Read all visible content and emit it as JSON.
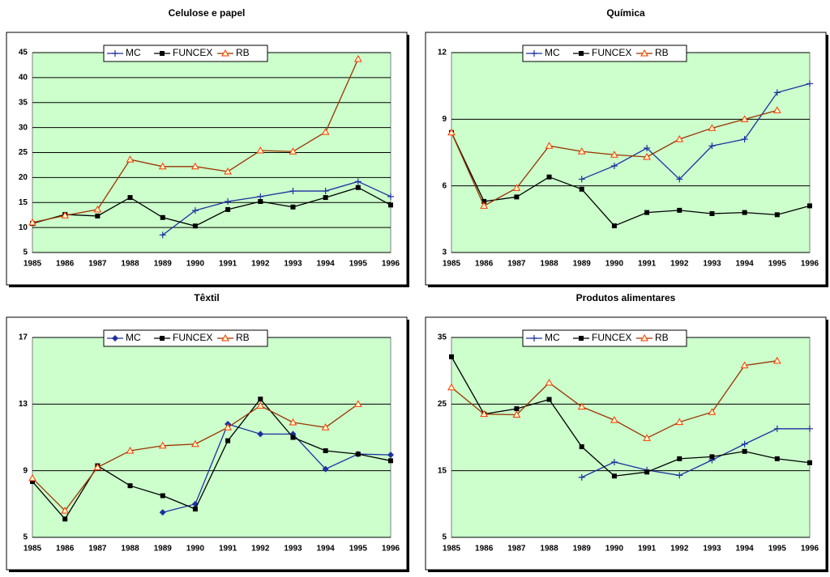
{
  "charts": [
    {
      "chart_data": {
        "type": "line",
        "title": "Celulose e papel",
        "categories": [
          "1985",
          "1986",
          "1987",
          "1988",
          "1989",
          "1990",
          "1991",
          "1992",
          "1993",
          "1994",
          "1995",
          "1996"
        ],
        "ylim": [
          5,
          45
        ],
        "yticks": [
          5,
          10,
          15,
          20,
          25,
          30,
          35,
          40,
          45
        ],
        "grid": true,
        "series": [
          {
            "name": "MC",
            "color": "#1f2f9f",
            "marker": "plus",
            "values": [
              null,
              null,
              null,
              null,
              8.5,
              13.4,
              15.2,
              16.2,
              17.3,
              17.3,
              19.2,
              16.2
            ]
          },
          {
            "name": "FUNCEX",
            "color": "#000000",
            "marker": "square",
            "values": [
              10.8,
              12.6,
              12.3,
              16,
              12,
              10.3,
              13.6,
              15.2,
              14.1,
              16,
              18,
              14.5
            ]
          },
          {
            "name": "RB",
            "color": "#993300",
            "marker": "triangle",
            "values": [
              11,
              12.4,
              13.6,
              23.6,
              22.2,
              22.2,
              21.2,
              25.4,
              25.2,
              29.1,
              43.7,
              null
            ]
          }
        ]
      }
    },
    {
      "chart_data": {
        "type": "line",
        "title": "Química",
        "categories": [
          "1985",
          "1986",
          "1987",
          "1988",
          "1989",
          "1990",
          "1991",
          "1992",
          "1993",
          "1994",
          "1995",
          "1996"
        ],
        "ylim": [
          3,
          12
        ],
        "yticks": [
          3,
          6,
          9,
          12
        ],
        "grid": true,
        "series": [
          {
            "name": "MC",
            "color": "#1f2f9f",
            "marker": "plus",
            "values": [
              null,
              null,
              null,
              null,
              6.3,
              6.9,
              7.7,
              6.3,
              7.8,
              8.1,
              10.2,
              10.6
            ]
          },
          {
            "name": "FUNCEX",
            "color": "#000000",
            "marker": "square",
            "values": [
              8.4,
              5.3,
              5.5,
              6.4,
              5.85,
              4.2,
              4.8,
              4.9,
              4.75,
              4.8,
              4.7,
              5.1
            ]
          },
          {
            "name": "RB",
            "color": "#993300",
            "marker": "triangle",
            "values": [
              8.4,
              5.1,
              5.9,
              7.8,
              7.55,
              7.4,
              7.3,
              8.1,
              8.6,
              9.0,
              9.4,
              null
            ]
          }
        ]
      }
    },
    {
      "chart_data": {
        "type": "line",
        "title": "Têxtil",
        "categories": [
          "1985",
          "1986",
          "1987",
          "1988",
          "1989",
          "1990",
          "1991",
          "1992",
          "1993",
          "1994",
          "1995",
          "1996"
        ],
        "ylim": [
          5,
          17
        ],
        "yticks": [
          5,
          9,
          13,
          17
        ],
        "grid": true,
        "series": [
          {
            "name": "MC",
            "color": "#1f2f9f",
            "marker": "diamond",
            "values": [
              null,
              null,
              null,
              null,
              6.5,
              7.0,
              11.8,
              11.2,
              11.2,
              9.1,
              10.0,
              9.95
            ]
          },
          {
            "name": "FUNCEX",
            "color": "#000000",
            "marker": "square",
            "values": [
              8.35,
              6.1,
              9.3,
              8.1,
              7.5,
              6.7,
              10.8,
              13.3,
              11.0,
              10.2,
              10.0,
              9.6
            ]
          },
          {
            "name": "RB",
            "color": "#993300",
            "marker": "triangle",
            "values": [
              8.55,
              6.6,
              9.2,
              10.2,
              10.5,
              10.6,
              11.6,
              12.9,
              11.9,
              11.6,
              13.0,
              null
            ]
          }
        ]
      }
    },
    {
      "chart_data": {
        "type": "line",
        "title": "Produtos alimentares",
        "categories": [
          "1985",
          "1986",
          "1987",
          "1988",
          "1989",
          "1990",
          "1991",
          "1992",
          "1993",
          "1994",
          "1995",
          "1996"
        ],
        "ylim": [
          5,
          35
        ],
        "yticks": [
          5,
          15,
          25,
          35
        ],
        "grid": true,
        "series": [
          {
            "name": "MC",
            "color": "#1f2f9f",
            "marker": "plus",
            "values": [
              null,
              null,
              null,
              null,
              14.0,
              16.3,
              15.1,
              14.3,
              16.6,
              19.0,
              21.3,
              21.3
            ]
          },
          {
            "name": "FUNCEX",
            "color": "#000000",
            "marker": "square",
            "values": [
              32.1,
              23.5,
              24.3,
              25.7,
              18.6,
              14.2,
              14.8,
              16.8,
              17.1,
              17.9,
              16.8,
              16.2
            ]
          },
          {
            "name": "RB",
            "color": "#993300",
            "marker": "triangle",
            "values": [
              27.5,
              23.5,
              23.4,
              28.2,
              24.6,
              22.6,
              19.9,
              22.3,
              23.8,
              30.8,
              31.5,
              null
            ]
          }
        ]
      }
    }
  ]
}
